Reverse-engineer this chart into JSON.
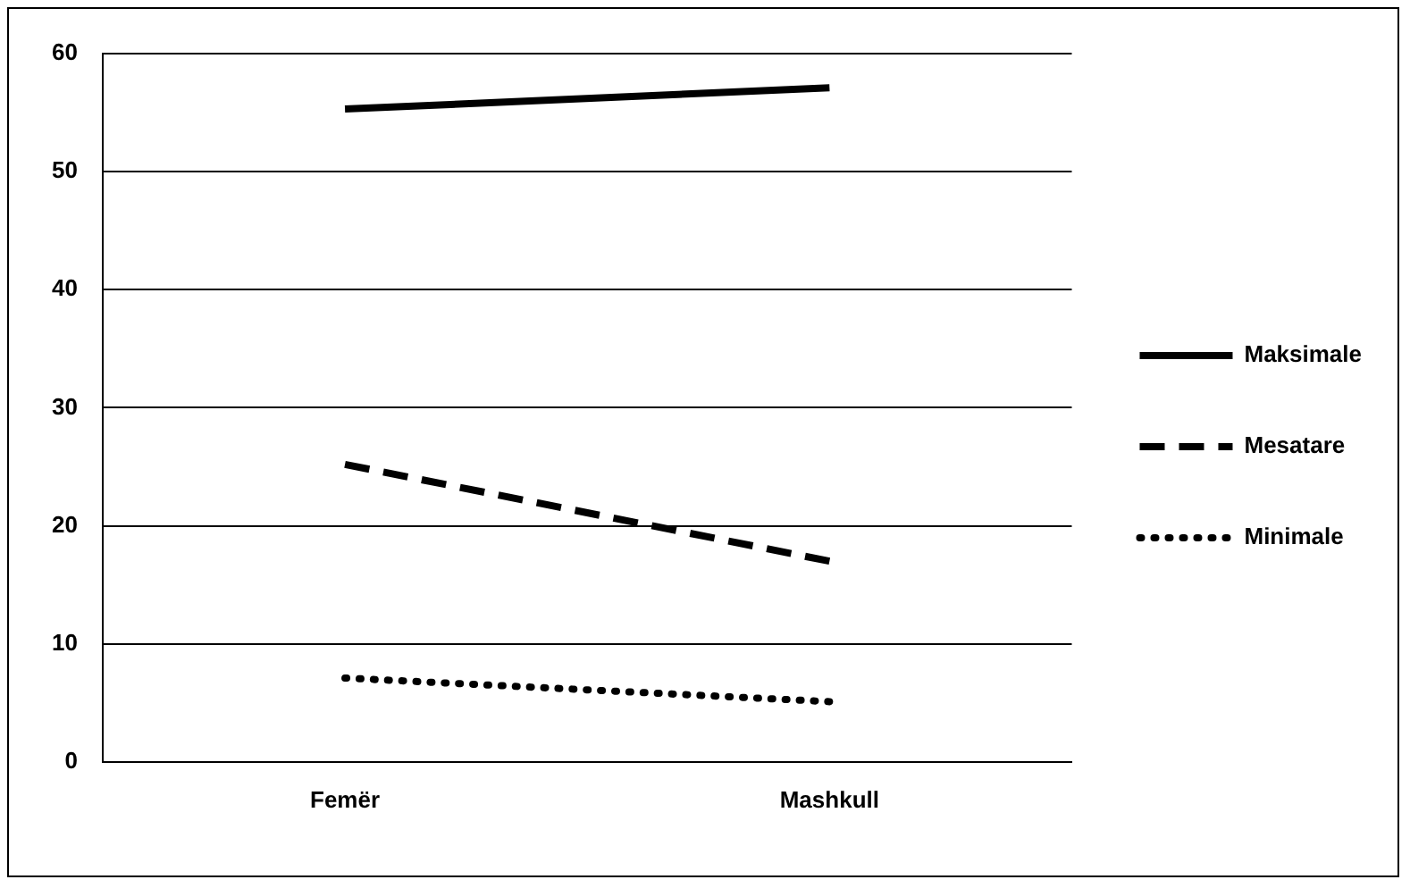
{
  "chart_data": {
    "type": "line",
    "categories": [
      "Femër",
      "Mashkull"
    ],
    "series": [
      {
        "name": "Maksimale",
        "color": "#000000",
        "values": [
          55.3,
          57.1
        ],
        "line_style": "solid"
      },
      {
        "name": "Mesatare",
        "color": "#000000",
        "values": [
          25.2,
          17.0
        ],
        "line_style": "dashed"
      },
      {
        "name": "Minimale",
        "color": "#000000",
        "values": [
          7.1,
          5.1
        ],
        "line_style": "dotted"
      }
    ],
    "ylim": [
      0,
      60
    ],
    "yticks": [
      0,
      10,
      20,
      30,
      40,
      50,
      60
    ],
    "grid": "y",
    "legend": "right",
    "marker": "none"
  }
}
